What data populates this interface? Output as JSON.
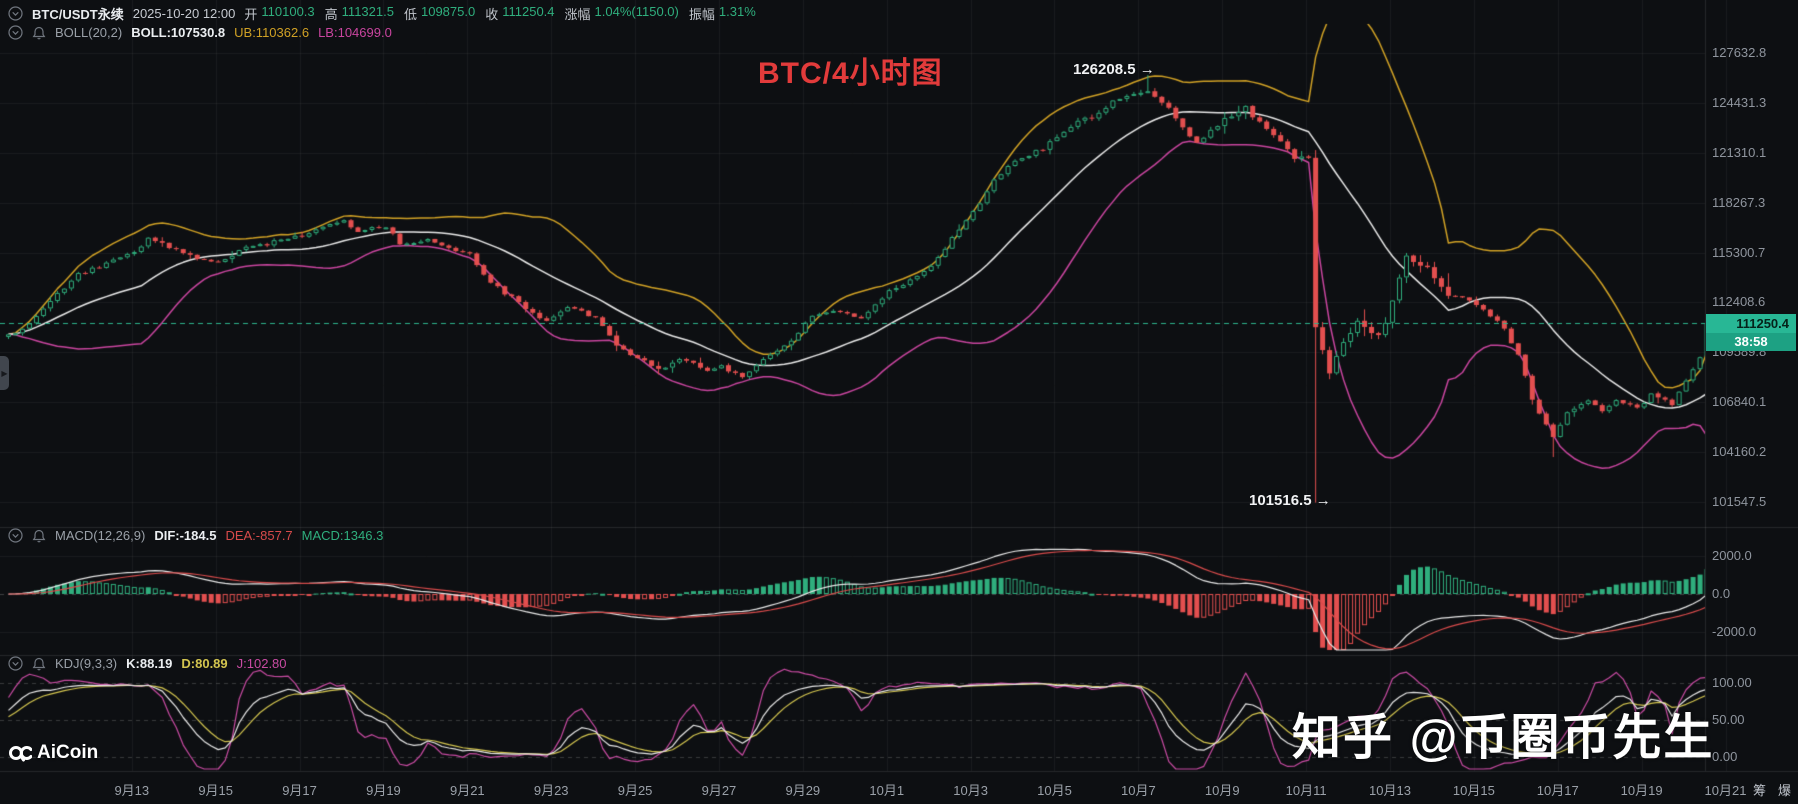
{
  "header": {
    "row1": {
      "symbol": "BTC/USDT永续",
      "datetime": "2025-10-20 12:00",
      "fields": [
        {
          "label": "开",
          "value": "110100.3"
        },
        {
          "label": "高",
          "value": "111321.5"
        },
        {
          "label": "低",
          "value": "109875.0"
        },
        {
          "label": "收",
          "value": "111250.4"
        },
        {
          "label": "涨幅",
          "value": "1.04%(1150.0)"
        },
        {
          "label": "振幅",
          "value": "1.31%"
        }
      ]
    },
    "row2": {
      "indicator": "BOLL(20,2)",
      "boll": "BOLL:107530.8",
      "ub": "UB:110362.6",
      "lb": "LB:104699.0"
    }
  },
  "title": "BTC/4小时图",
  "annotations": {
    "high": "126208.5 →",
    "low": "101516.5 →"
  },
  "price_tag": {
    "price": "111250.4",
    "countdown": "38:58"
  },
  "macd_panel": {
    "name": "MACD(12,26,9)",
    "dif": "DIF:-184.5",
    "dea": "DEA:-857.7",
    "macd": "MACD:1346.3",
    "axis": [
      "2000.0",
      "0.0",
      "-2000.0"
    ]
  },
  "kdj_panel": {
    "name": "KDJ(9,3,3)",
    "k": "K:88.19",
    "d": "D:80.89",
    "j": "J:102.80",
    "axis": [
      "100.00",
      "50.00",
      "0.00"
    ]
  },
  "side_buttons": [
    "筹",
    "爆"
  ],
  "logo": "AiCoin",
  "watermark": "知乎 @币圈币先生",
  "colors": {
    "up": "#2fae7d",
    "down": "#e34f4f",
    "boll_up": "#d0a125",
    "boll_mid": "#e8e8e8",
    "boll_low": "#c9459f",
    "dif": "#e8e8e8",
    "dea": "#d84b4b",
    "kdj_k": "#e8e8e8",
    "kdj_d": "#d3c54f",
    "kdj_j": "#c94ba3",
    "price_line": "#2cb38c",
    "tag_bg": "#28b795",
    "title_red": "#e23b3b",
    "grid": "rgba(255,255,255,0.05)",
    "axis_text": "#8f959e"
  },
  "chart_data": {
    "type": "candlestick",
    "symbol": "BTC/USDT perpetual",
    "interval": "4h",
    "scale": "log",
    "current_bar": {
      "open": 110100.3,
      "high": 111321.5,
      "low": 109875.0,
      "close": 111250.4,
      "change_pct": 1.04,
      "change_abs": 1150.0,
      "amplitude_pct": 1.31
    },
    "boll": {
      "period": 20,
      "mult": 2,
      "mid": 107530.8,
      "ub": 110362.6,
      "lb": 104699.0
    },
    "macd": {
      "fast": 12,
      "slow": 26,
      "signal": 9,
      "dif": -184.5,
      "dea": -857.7,
      "hist": 1346.3
    },
    "kdj": {
      "params": [
        9,
        3,
        3
      ],
      "k": 88.19,
      "d": 80.89,
      "j": 102.8
    },
    "marked_high": 126208.5,
    "marked_low": 101516.5,
    "last_price": 111250.4,
    "y_ticks": [
      127632.8,
      124431.3,
      121310.1,
      118267.3,
      115300.7,
      112408.6,
      109589.8,
      106840.1,
      104160.2,
      101547.5
    ],
    "macd_ticks": [
      2000,
      0,
      -2000
    ],
    "kdj_ticks": [
      100,
      50,
      0
    ],
    "x_labels": [
      "9月13",
      "9月15",
      "9月17",
      "9月19",
      "9月21",
      "9月23",
      "9月25",
      "9月27",
      "9月29",
      "10月1",
      "10月3",
      "10月5",
      "10月7",
      "10月9",
      "10月11",
      "10月13",
      "10月15",
      "10月17",
      "10月19",
      "10月21"
    ],
    "anchors": [
      [
        0,
        110500
      ],
      [
        0.5,
        111200
      ],
      [
        1,
        112500
      ],
      [
        1.7,
        114000
      ],
      [
        2.5,
        114900
      ],
      [
        3,
        115300
      ],
      [
        3.4,
        116200
      ],
      [
        3.8,
        115600
      ],
      [
        4.3,
        115100
      ],
      [
        5,
        114700
      ],
      [
        5.6,
        115600
      ],
      [
        6.3,
        115900
      ],
      [
        7,
        116300
      ],
      [
        7.6,
        117000
      ],
      [
        8,
        117200
      ],
      [
        8.4,
        116600
      ],
      [
        9,
        116900
      ],
      [
        9.4,
        115800
      ],
      [
        10,
        116000
      ],
      [
        10.6,
        115400
      ],
      [
        11,
        115200
      ],
      [
        11.4,
        114000
      ],
      [
        11.8,
        113000
      ],
      [
        12.3,
        112000
      ],
      [
        12.8,
        111400
      ],
      [
        13.3,
        112200
      ],
      [
        14,
        111600
      ],
      [
        14.5,
        110000
      ],
      [
        15,
        109300
      ],
      [
        15.5,
        108700
      ],
      [
        16,
        109200
      ],
      [
        16.6,
        108600
      ],
      [
        17,
        108800
      ],
      [
        17.5,
        108200
      ],
      [
        18,
        109200
      ],
      [
        18.7,
        110300
      ],
      [
        19.2,
        111700
      ],
      [
        19.8,
        111900
      ],
      [
        20.3,
        111500
      ],
      [
        21,
        113100
      ],
      [
        21.6,
        113900
      ],
      [
        22,
        114600
      ],
      [
        22.5,
        116200
      ],
      [
        23,
        117700
      ],
      [
        23.5,
        119600
      ],
      [
        24,
        120800
      ],
      [
        24.6,
        121600
      ],
      [
        25,
        122300
      ],
      [
        25.5,
        123100
      ],
      [
        26,
        123900
      ],
      [
        26.5,
        124700
      ],
      [
        27.2,
        125300
      ],
      [
        27.6,
        124100
      ],
      [
        28,
        123100
      ],
      [
        28.4,
        122000
      ],
      [
        29,
        123400
      ],
      [
        29.5,
        124100
      ],
      [
        30,
        122900
      ],
      [
        30.6,
        121300
      ],
      [
        31,
        121000
      ],
      [
        31.2,
        111000
      ],
      [
        31.5,
        108600
      ],
      [
        31.8,
        110000
      ],
      [
        32.2,
        111400
      ],
      [
        32.6,
        110300
      ],
      [
        33,
        112600
      ],
      [
        33.4,
        115000
      ],
      [
        33.8,
        114100
      ],
      [
        34.3,
        113100
      ],
      [
        34.8,
        112500
      ],
      [
        35.2,
        112000
      ],
      [
        35.6,
        110900
      ],
      [
        36,
        109400
      ],
      [
        36.4,
        107000
      ],
      [
        36.8,
        104900
      ],
      [
        37.2,
        106300
      ],
      [
        37.6,
        106900
      ],
      [
        38,
        106300
      ],
      [
        38.4,
        107000
      ],
      [
        38.8,
        106500
      ],
      [
        39.2,
        107300
      ],
      [
        39.6,
        106800
      ],
      [
        40,
        108000
      ],
      [
        40.3,
        109300
      ],
      [
        40.5,
        111250.4
      ]
    ]
  }
}
